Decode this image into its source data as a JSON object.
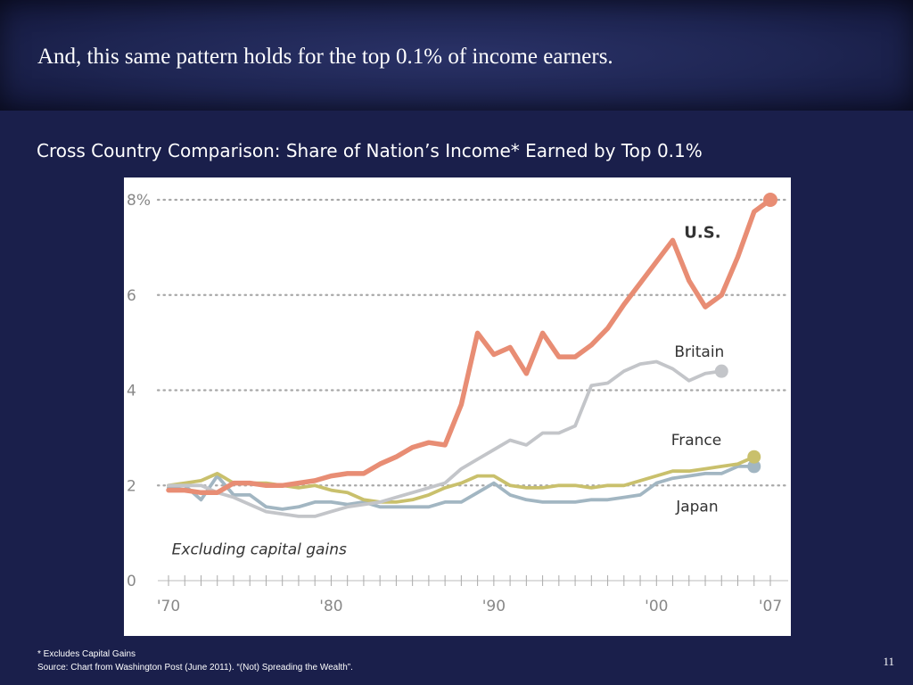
{
  "slide": {
    "title": "And, this same pattern holds for the top 0.1% of income earners.",
    "subtitle": "Cross Country Comparison: Share of Nation’s Income* Earned by Top 0.1%",
    "footnote": "* Excludes Capital Gains",
    "source": "Source: Chart from Washington Post (June 2011). “(Not) Spreading the Wealth”.",
    "page_number": "11",
    "background_color": "#1a1f4b"
  },
  "chart_data": {
    "type": "line",
    "title": "",
    "xlabel": "",
    "ylabel": "",
    "xlim": [
      1970,
      2007
    ],
    "ylim": [
      0,
      8
    ],
    "grid": "dotted horizontal",
    "annotation": "Excluding capital gains",
    "x_ticks": [
      {
        "value": 1970,
        "label": "'70"
      },
      {
        "value": 1980,
        "label": "'80"
      },
      {
        "value": 1990,
        "label": "'90"
      },
      {
        "value": 2000,
        "label": "'00"
      },
      {
        "value": 2007,
        "label": "'07"
      }
    ],
    "y_ticks": [
      {
        "value": 0,
        "label": "0"
      },
      {
        "value": 2,
        "label": "2"
      },
      {
        "value": 4,
        "label": "4"
      },
      {
        "value": 6,
        "label": "6"
      },
      {
        "value": 8,
        "label": "8%"
      }
    ],
    "series": [
      {
        "name": "U.S.",
        "color": "#e88d74",
        "x": [
          1970,
          1971,
          1972,
          1973,
          1974,
          1975,
          1976,
          1977,
          1978,
          1979,
          1980,
          1981,
          1982,
          1983,
          1984,
          1985,
          1986,
          1987,
          1988,
          1989,
          1990,
          1991,
          1992,
          1993,
          1994,
          1995,
          1996,
          1997,
          1998,
          1999,
          2000,
          2001,
          2002,
          2003,
          2004,
          2005,
          2006,
          2007
        ],
        "y": [
          1.9,
          1.9,
          1.85,
          1.85,
          2.05,
          2.05,
          2.0,
          2.0,
          2.05,
          2.1,
          2.2,
          2.25,
          2.25,
          2.45,
          2.6,
          2.8,
          2.9,
          2.85,
          3.7,
          5.2,
          4.75,
          4.9,
          4.35,
          5.2,
          4.7,
          4.7,
          4.95,
          5.3,
          5.8,
          6.25,
          6.7,
          7.15,
          6.3,
          5.75,
          6.0,
          6.8,
          7.75,
          8.0
        ]
      },
      {
        "name": "Britain",
        "color": "#c3c5c9",
        "x": [
          1970,
          1971,
          1972,
          1973,
          1974,
          1975,
          1976,
          1977,
          1978,
          1979,
          1980,
          1981,
          1982,
          1983,
          1984,
          1985,
          1986,
          1987,
          1988,
          1989,
          1990,
          1991,
          1992,
          1993,
          1994,
          1995,
          1996,
          1997,
          1998,
          1999,
          2000,
          2001,
          2002,
          2003,
          2004
        ],
        "y": [
          2.0,
          2.0,
          2.0,
          1.85,
          1.75,
          1.6,
          1.45,
          1.4,
          1.35,
          1.35,
          1.45,
          1.55,
          1.6,
          1.65,
          1.75,
          1.85,
          1.95,
          2.05,
          2.35,
          2.55,
          2.75,
          2.95,
          2.85,
          3.1,
          3.1,
          3.25,
          4.1,
          4.15,
          4.4,
          4.55,
          4.6,
          4.45,
          4.2,
          4.35,
          4.4
        ]
      },
      {
        "name": "France",
        "color": "#c9c06c",
        "x": [
          1970,
          1971,
          1972,
          1973,
          1974,
          1975,
          1976,
          1977,
          1978,
          1979,
          1980,
          1981,
          1982,
          1983,
          1984,
          1985,
          1986,
          1987,
          1988,
          1989,
          1990,
          1991,
          1992,
          1993,
          1994,
          1995,
          1996,
          1997,
          1998,
          1999,
          2000,
          2001,
          2002,
          2003,
          2004,
          2005,
          2006
        ],
        "y": [
          2.0,
          2.05,
          2.1,
          2.25,
          2.05,
          2.05,
          2.05,
          2.0,
          1.95,
          2.0,
          1.9,
          1.85,
          1.7,
          1.65,
          1.65,
          1.7,
          1.8,
          1.95,
          2.05,
          2.2,
          2.2,
          2.0,
          1.95,
          1.95,
          2.0,
          2.0,
          1.95,
          2.0,
          2.0,
          2.1,
          2.2,
          2.3,
          2.3,
          2.35,
          2.4,
          2.45,
          2.6
        ]
      },
      {
        "name": "Japan",
        "color": "#a2b6c2",
        "x": [
          1970,
          1971,
          1972,
          1973,
          1974,
          1975,
          1976,
          1977,
          1978,
          1979,
          1980,
          1981,
          1982,
          1983,
          1984,
          1985,
          1986,
          1987,
          1988,
          1989,
          1990,
          1991,
          1992,
          1993,
          1994,
          1995,
          1996,
          1997,
          1998,
          1999,
          2000,
          2001,
          2002,
          2003,
          2004,
          2005,
          2006
        ],
        "y": [
          1.95,
          2.0,
          1.7,
          2.2,
          1.8,
          1.8,
          1.55,
          1.5,
          1.55,
          1.65,
          1.65,
          1.6,
          1.65,
          1.55,
          1.55,
          1.55,
          1.55,
          1.65,
          1.65,
          1.85,
          2.05,
          1.8,
          1.7,
          1.65,
          1.65,
          1.65,
          1.7,
          1.7,
          1.75,
          1.8,
          2.05,
          2.15,
          2.2,
          2.25,
          2.25,
          2.4,
          2.4
        ]
      }
    ]
  }
}
